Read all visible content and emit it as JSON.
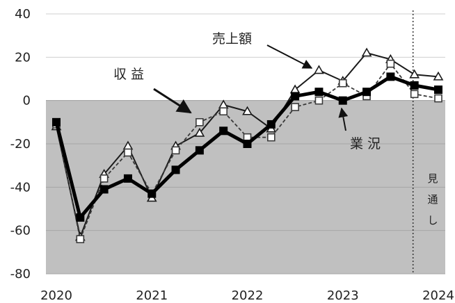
{
  "chart_data": {
    "type": "line",
    "ylim": [
      -80,
      40
    ],
    "yticks": [
      40,
      20,
      0,
      -20,
      -40,
      -60,
      -80
    ],
    "xticks": [
      "2020",
      "2021",
      "2022",
      "2023",
      "2024"
    ],
    "x": [
      "2020Q1",
      "2020Q2",
      "2020Q3",
      "2020Q4",
      "2021Q1",
      "2021Q2",
      "2021Q3",
      "2021Q4",
      "2022Q1",
      "2022Q2",
      "2022Q3",
      "2022Q4",
      "2023Q1",
      "2023Q2",
      "2023Q3",
      "2023Q4",
      "2024Q1"
    ],
    "negative_region_color": "#c0c0c0",
    "forecast_from": "2023Q4",
    "forecast_note": [
      "見",
      "通",
      "し"
    ],
    "series": [
      {
        "name": "売上額",
        "style": "solid-thin",
        "marker": "triangle",
        "color": "#1a1a1a",
        "values": [
          -12,
          -63,
          -34,
          -21,
          -45,
          -21,
          -15,
          -2,
          -5,
          -13,
          5,
          14,
          9,
          22,
          19,
          12,
          11
        ]
      },
      {
        "name": "収益",
        "style": "dashed",
        "marker": "open-square",
        "color": "#3a3a3a",
        "values": [
          -11,
          -64,
          -36,
          -24,
          -43,
          -23,
          -10,
          -5,
          -17,
          -17,
          -3,
          0,
          8,
          2,
          17,
          3,
          1
        ]
      },
      {
        "name": "業況",
        "style": "solid-thick",
        "marker": "filled-square",
        "color": "#000000",
        "values": [
          -10,
          -54,
          -41,
          -36,
          -43,
          -32,
          -23,
          -14,
          -20,
          -11,
          2,
          4,
          0,
          4,
          11,
          7,
          5
        ]
      }
    ],
    "annotations": [
      {
        "text": "売上額",
        "series": "売上額"
      },
      {
        "text": "収 益",
        "series": "収益"
      },
      {
        "text": "業 況",
        "series": "業況"
      }
    ]
  }
}
